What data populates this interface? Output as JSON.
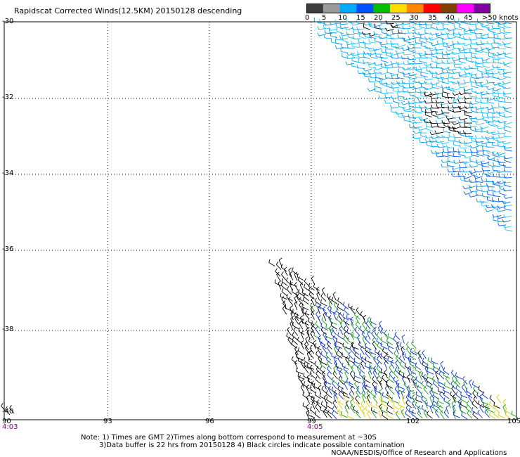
{
  "title": "Rapidscat Corrected Winds(12.5KM) 20150128 descending",
  "legend": {
    "labels": [
      "0",
      "5",
      "10",
      "15",
      "20",
      "25",
      "30",
      "35",
      "40",
      "45",
      ">50 knots"
    ],
    "colors": [
      "#3c3c3c",
      "#9a9a9a",
      "#00aaff",
      "#0050ff",
      "#00c000",
      "#ffdd00",
      "#ff8800",
      "#ff0000",
      "#804000",
      "#ff00ff",
      "#8000a0"
    ]
  },
  "map": {
    "lat_labels": [
      "-30",
      "-32",
      "-34",
      "-36",
      "-38",
      "-40"
    ],
    "lon_labels": [
      "90",
      "93",
      "96",
      "99",
      "102",
      "105"
    ],
    "time_labels": [
      "4:03",
      "4:05"
    ],
    "lat_range": [
      -40,
      -30
    ],
    "lon_range": [
      90,
      105
    ],
    "grid": true,
    "swaths": [
      {
        "name": "north-east swath",
        "dominant_colors": [
          "#00aaff",
          "#0050ff",
          "#00c0ff",
          "#000000"
        ]
      },
      {
        "name": "south swath",
        "dominant_colors": [
          "#000000",
          "#0000ff",
          "#00c000",
          "#ffdd00"
        ]
      }
    ]
  },
  "notes": {
    "line1": "Note: 1) Times are GMT 2)Times along bottom correspond to measurement at ~30S",
    "line2": "3)Data buffer is 22 hrs from 20150128 4) Black circles indicate possible contamination",
    "credit": "NOAA/NESDIS/Office of Research and Applications"
  }
}
